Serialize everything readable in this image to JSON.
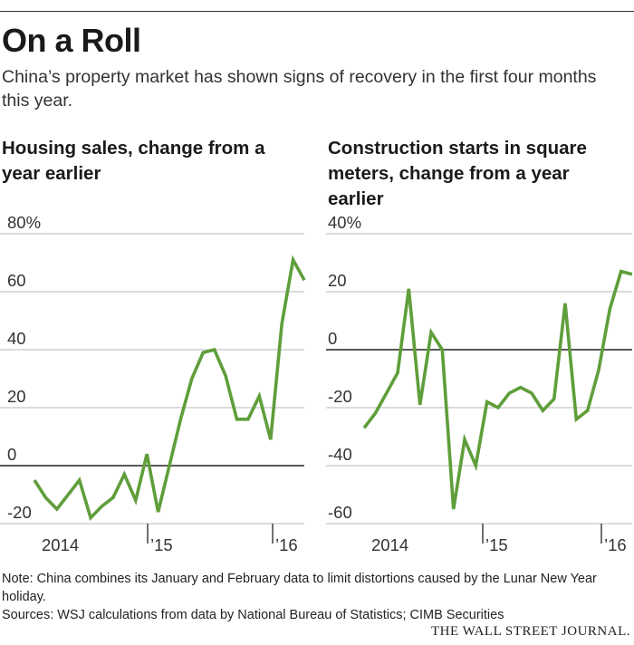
{
  "title": "On a Roll",
  "subtitle": "China’s property market has shown signs of recovery in the first four months this year.",
  "note": "Note: China combines its January and February data to limit distortions caused by the Lunar New Year holiday.",
  "sources": "Sources: WSJ calculations from data by National Bureau of Statistics; CIMB Securities",
  "publisher": "THE WALL STREET JOURNAL.",
  "colors": {
    "line": "#5f9e3b",
    "grid": "#c8c8c8",
    "zero": "#222222",
    "text": "#333333"
  },
  "chart_data": [
    {
      "type": "line",
      "title": "Housing sales, change from a year earlier",
      "x_tick_labels": [
        "2014",
        "’15",
        "’16"
      ],
      "y_ticks": [
        "80%",
        "60",
        "40",
        "20",
        "0",
        "-20"
      ],
      "ylim": [
        -20,
        80
      ],
      "grid": true,
      "series": [
        {
          "values": [
            -5,
            -11,
            -15,
            -10,
            -5,
            -18,
            -14,
            -11,
            -3,
            -12,
            4,
            -16,
            0,
            16,
            30,
            39,
            40,
            31,
            16,
            16,
            24,
            9,
            49,
            71,
            64
          ]
        }
      ]
    },
    {
      "type": "line",
      "title": "Construction starts in square meters, change from a year earlier",
      "x_tick_labels": [
        "2014",
        "’15",
        "’16"
      ],
      "y_ticks": [
        "40%",
        "20",
        "0",
        "-20",
        "-40",
        "-60"
      ],
      "ylim": [
        -60,
        40
      ],
      "grid": true,
      "series": [
        {
          "values": [
            -27,
            -22,
            -15,
            -8,
            21,
            -19,
            6,
            0,
            -55,
            -31,
            -40,
            -18,
            -20,
            -15,
            -13,
            -15,
            -21,
            -17,
            16,
            -24,
            -21,
            -7,
            14,
            27,
            26
          ]
        }
      ]
    }
  ]
}
